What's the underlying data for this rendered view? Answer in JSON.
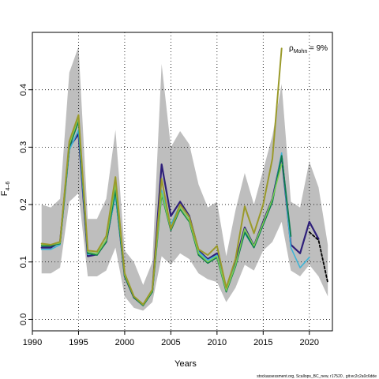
{
  "chart_data": {
    "type": "line",
    "xlabel": "Years",
    "ylabel": "F",
    "ylabel_sub": "4–6",
    "xlim": [
      1990,
      2022.5
    ],
    "ylim": [
      -0.02,
      0.5
    ],
    "xticks": [
      1990,
      1995,
      2000,
      2005,
      2010,
      2015,
      2020
    ],
    "yticks": [
      0.0,
      0.1,
      0.2,
      0.3,
      0.4
    ],
    "ytick_labels": [
      "0.0",
      "0.1",
      "0.2",
      "0.3",
      "0.4"
    ],
    "grid": "dotted",
    "annotation": {
      "symbol": "ρ",
      "subscript": "Mohn",
      "text": " = 9%"
    },
    "footnote": "stockassessment.org, Scallops_BC_new, r17520 , git:ec2c2a0c6dde",
    "confidence_band": {
      "color": "#bebebe",
      "x": [
        1991,
        1992,
        1993,
        1994,
        1995,
        1996,
        1997,
        1998,
        1999,
        2000,
        2001,
        2002,
        2003,
        2004,
        2005,
        2006,
        2007,
        2008,
        2009,
        2010,
        2011,
        2012,
        2013,
        2014,
        2015,
        2016,
        2017,
        2018,
        2019,
        2020,
        2021,
        2022
      ],
      "upper": [
        0.2,
        0.195,
        0.21,
        0.43,
        0.475,
        0.175,
        0.175,
        0.21,
        0.33,
        0.12,
        0.1,
        0.06,
        0.1,
        0.445,
        0.3,
        0.328,
        0.305,
        0.235,
        0.195,
        0.205,
        0.11,
        0.19,
        0.255,
        0.2,
        0.26,
        0.32,
        0.41,
        0.205,
        0.195,
        0.275,
        0.23,
        0.13
      ],
      "lower": [
        0.08,
        0.08,
        0.09,
        0.205,
        0.22,
        0.075,
        0.075,
        0.085,
        0.125,
        0.04,
        0.02,
        0.015,
        0.03,
        0.11,
        0.095,
        0.115,
        0.105,
        0.08,
        0.07,
        0.065,
        0.03,
        0.055,
        0.095,
        0.085,
        0.12,
        0.135,
        0.17,
        0.085,
        0.075,
        0.095,
        0.075,
        0.04
      ]
    },
    "series": [
      {
        "color": "#2e1f7a",
        "width": 2.2,
        "dash": "",
        "x": [
          1991,
          1992,
          1993,
          1994,
          1995,
          1996,
          1997,
          1998,
          1999,
          2000,
          2001,
          2002,
          2003,
          2004,
          2005,
          2006,
          2007,
          2008,
          2009,
          2010,
          2011,
          2012,
          2013,
          2014,
          2015,
          2016,
          2017,
          2018,
          2019,
          2020,
          2021
        ],
        "y": [
          0.125,
          0.125,
          0.135,
          0.3,
          0.323,
          0.11,
          0.113,
          0.135,
          0.22,
          0.075,
          0.038,
          0.025,
          0.05,
          0.27,
          0.18,
          0.205,
          0.18,
          0.12,
          0.105,
          0.115,
          0.052,
          0.1,
          0.16,
          0.128,
          0.17,
          0.21,
          0.285,
          0.13,
          0.115,
          0.17,
          0.14
        ]
      },
      {
        "color": "#40b4d6",
        "width": 1.6,
        "dash": "",
        "x": [
          1991,
          1992,
          1993,
          1994,
          1995,
          1996,
          1997,
          1998,
          1999,
          2000,
          2001,
          2002,
          2003,
          2004,
          2005,
          2006,
          2007,
          2008,
          2009,
          2010,
          2011,
          2012,
          2013,
          2014,
          2015,
          2016,
          2017,
          2018,
          2019,
          2020
        ],
        "y": [
          0.122,
          0.122,
          0.13,
          0.295,
          0.33,
          0.113,
          0.115,
          0.137,
          0.215,
          0.076,
          0.039,
          0.025,
          0.048,
          0.225,
          0.165,
          0.2,
          0.177,
          0.118,
          0.103,
          0.112,
          0.052,
          0.095,
          0.15,
          0.125,
          0.165,
          0.205,
          0.29,
          0.125,
          0.09,
          0.108
        ]
      },
      {
        "color": "#0f7a4e",
        "width": 1.8,
        "dash": "",
        "x": [
          1991,
          1992,
          1993,
          1994,
          1995,
          1996,
          1997,
          1998,
          1999,
          2000,
          2001,
          2002,
          2003,
          2004,
          2005,
          2006,
          2007,
          2008,
          2009,
          2010,
          2011,
          2012,
          2013,
          2014,
          2015,
          2016,
          2017,
          2018
        ],
        "y": [
          0.128,
          0.128,
          0.132,
          0.3,
          0.345,
          0.115,
          0.112,
          0.135,
          0.225,
          0.075,
          0.038,
          0.024,
          0.048,
          0.218,
          0.155,
          0.192,
          0.17,
          0.112,
          0.098,
          0.108,
          0.048,
          0.092,
          0.152,
          0.125,
          0.165,
          0.205,
          0.285,
          0.145
        ]
      },
      {
        "color": "#7ccd52",
        "width": 1.5,
        "dash": "",
        "x": [
          1991,
          1992,
          1993,
          1994,
          1995,
          1996,
          1997,
          1998,
          1999,
          2000,
          2001,
          2002,
          2003,
          2004,
          2005,
          2006,
          2007,
          2008,
          2009,
          2010,
          2011,
          2012,
          2013,
          2014,
          2015,
          2016,
          2017
        ],
        "y": [
          0.13,
          0.13,
          0.133,
          0.305,
          0.35,
          0.118,
          0.114,
          0.138,
          0.235,
          0.077,
          0.04,
          0.025,
          0.05,
          0.22,
          0.157,
          0.195,
          0.172,
          0.115,
          0.1,
          0.11,
          0.05,
          0.094,
          0.158,
          0.128,
          0.168,
          0.21,
          0.27
        ]
      },
      {
        "color": "#9a9a2a",
        "width": 2.0,
        "dash": "",
        "x": [
          1991,
          1992,
          1993,
          1994,
          1995,
          1996,
          1997,
          1998,
          1999,
          2000,
          2001,
          2002,
          2003,
          2004,
          2005,
          2006,
          2007,
          2008,
          2009,
          2010,
          2011,
          2012,
          2013,
          2014,
          2015,
          2016,
          2017
        ],
        "y": [
          0.132,
          0.13,
          0.135,
          0.31,
          0.356,
          0.12,
          0.118,
          0.145,
          0.248,
          0.08,
          0.04,
          0.026,
          0.052,
          0.245,
          0.158,
          0.2,
          0.178,
          0.122,
          0.112,
          0.128,
          0.055,
          0.105,
          0.197,
          0.15,
          0.2,
          0.28,
          0.472
        ]
      },
      {
        "color": "#000000",
        "width": 1.8,
        "dash": "3,2.5",
        "x": [
          2020,
          2021,
          2022
        ],
        "y": [
          0.152,
          0.138,
          0.064
        ]
      }
    ]
  }
}
